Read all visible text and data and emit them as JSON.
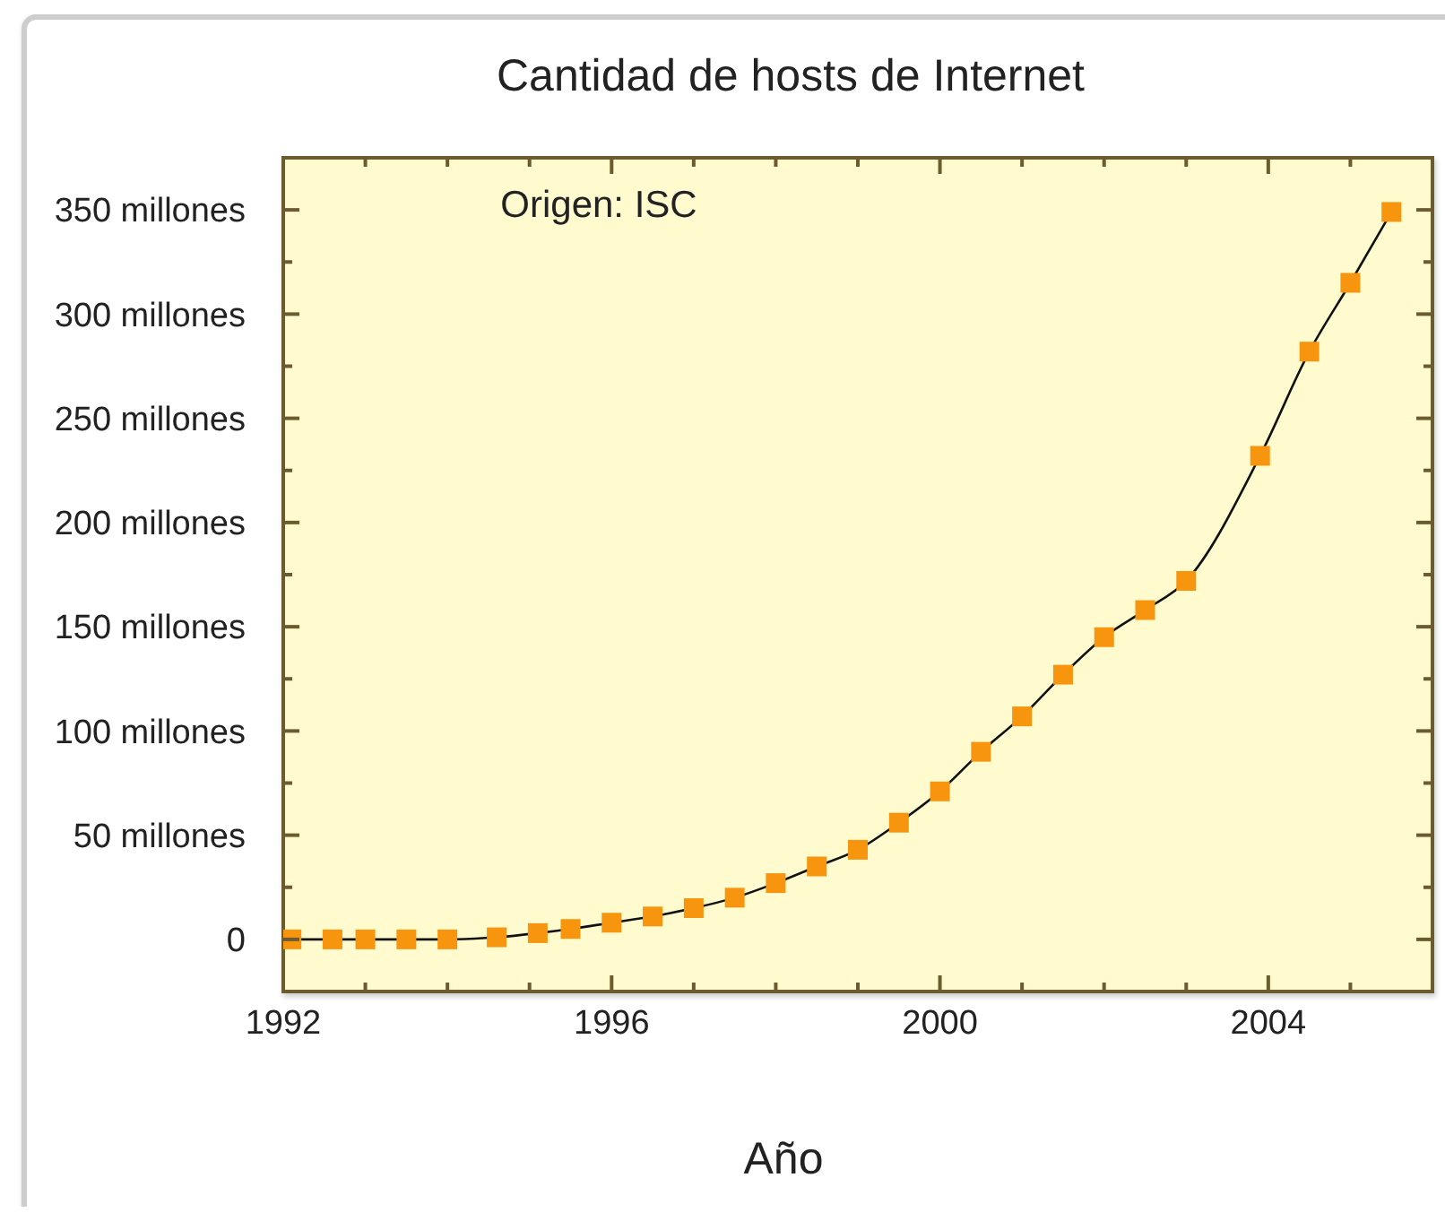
{
  "chart_data": {
    "type": "line",
    "title": "Cantidad de hosts de Internet",
    "xlabel": "Año",
    "annotations": [
      "Origen: ISC"
    ],
    "x": [
      1992.1,
      1992.6,
      1993,
      1993.5,
      1994,
      1994.6,
      1995.1,
      1995.5,
      1996,
      1996.5,
      1997,
      1997.5,
      1998,
      1998.5,
      1999,
      1999.5,
      2000,
      2000.5,
      2001,
      2001.5,
      2002,
      2002.5,
      2003,
      2003.9,
      2004.5,
      2005,
      2005.5
    ],
    "series": [
      {
        "color": "#f7950f",
        "values": [
          0,
          0,
          0,
          0,
          0,
          1,
          3,
          5,
          8,
          11,
          15,
          20,
          27,
          35,
          43,
          56,
          71,
          90,
          107,
          127,
          145,
          158,
          172,
          232,
          282,
          315,
          349
        ]
      }
    ],
    "xlim": [
      1992,
      2006
    ],
    "xticks": [
      1992,
      {
        "value": 1993,
        "label": null
      },
      {
        "value": 1994,
        "label": null
      },
      {
        "value": 1995,
        "label": null
      },
      1996,
      {
        "value": 1997,
        "label": null
      },
      {
        "value": 1998,
        "label": null
      },
      {
        "value": 1999,
        "label": null
      },
      2000,
      {
        "value": 2001,
        "label": null
      },
      {
        "value": 2002,
        "label": null
      },
      {
        "value": 2003,
        "label": null
      },
      2004,
      {
        "value": 2005,
        "label": null
      }
    ],
    "ylim": [
      -25,
      375
    ],
    "yticks": [
      0,
      {
        "value": 25,
        "label": null
      },
      {
        "value": 50,
        "label": "50 millones"
      },
      {
        "value": 75,
        "label": null
      },
      {
        "value": 100,
        "label": "100 millones"
      },
      {
        "value": 125,
        "label": null
      },
      {
        "value": 150,
        "label": "150 millones"
      },
      {
        "value": 175,
        "label": null
      },
      {
        "value": 200,
        "label": "200 millones"
      },
      {
        "value": 225,
        "label": null
      },
      {
        "value": 250,
        "label": "250 millones"
      },
      {
        "value": 275,
        "label": null
      },
      {
        "value": 300,
        "label": "300 millones"
      },
      {
        "value": 325,
        "label": null
      },
      {
        "value": 350,
        "label": "350 millones"
      }
    ],
    "marker": "square"
  }
}
